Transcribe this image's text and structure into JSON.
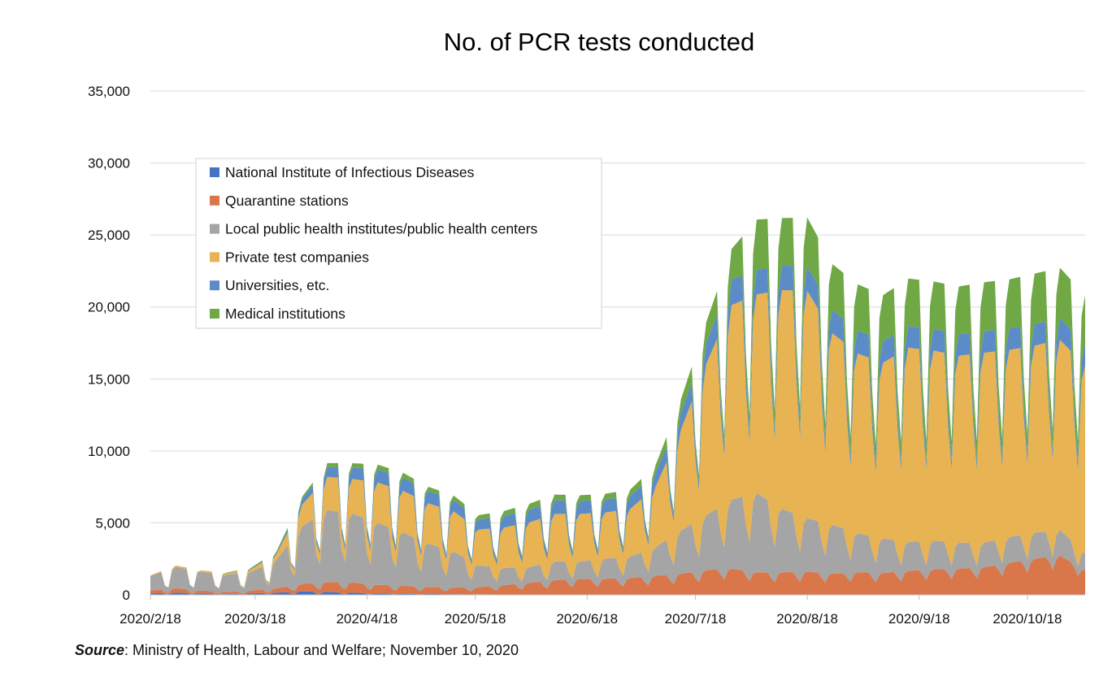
{
  "chart_data": {
    "type": "area",
    "stacked": true,
    "title": "No. of PCR tests conducted",
    "xlabel": "",
    "ylabel": "",
    "x_range": [
      "2020/2/18",
      "2020/11/3"
    ],
    "ylim": [
      0,
      35000
    ],
    "y_ticks": [
      0,
      5000,
      10000,
      15000,
      20000,
      25000,
      30000,
      35000
    ],
    "y_tick_labels": [
      "0",
      "5,000",
      "10,000",
      "15,000",
      "20,000",
      "25,000",
      "30,000",
      "35,000"
    ],
    "x_ticks": [
      "2020/2/18",
      "2020/3/18",
      "2020/4/18",
      "2020/5/18",
      "2020/6/18",
      "2020/7/18",
      "2020/8/18",
      "2020/9/18",
      "2020/10/18"
    ],
    "grid": true,
    "legend_position": "upper-left",
    "x_weekly": [
      "2020/2/18",
      "2020/2/25",
      "2020/3/3",
      "2020/3/10",
      "2020/3/17",
      "2020/3/24",
      "2020/3/31",
      "2020/4/7",
      "2020/4/14",
      "2020/4/21",
      "2020/4/28",
      "2020/5/5",
      "2020/5/12",
      "2020/5/19",
      "2020/5/26",
      "2020/6/2",
      "2020/6/9",
      "2020/6/16",
      "2020/6/23",
      "2020/6/30",
      "2020/7/7",
      "2020/7/14",
      "2020/7/21",
      "2020/7/28",
      "2020/8/4",
      "2020/8/11",
      "2020/8/18",
      "2020/8/25",
      "2020/9/1",
      "2020/9/8",
      "2020/9/15",
      "2020/9/22",
      "2020/9/29",
      "2020/10/6",
      "2020/10/13",
      "2020/10/20",
      "2020/10/27",
      "2020/11/3"
    ],
    "series": [
      {
        "name": "National Institute of Infectious Diseases",
        "color": "#4472c4",
        "weekday": [
          100,
          150,
          100,
          50,
          100,
          150,
          250,
          200,
          150,
          100,
          80,
          60,
          50,
          40,
          30,
          30,
          20,
          20,
          20,
          20,
          20,
          20,
          20,
          20,
          20,
          20,
          20,
          20,
          20,
          20,
          20,
          20,
          20,
          20,
          20,
          20,
          20,
          20
        ],
        "weekend": [
          30,
          50,
          30,
          20,
          30,
          50,
          80,
          60,
          50,
          40,
          30,
          20,
          20,
          15,
          10,
          10,
          10,
          10,
          10,
          10,
          10,
          10,
          10,
          10,
          10,
          10,
          10,
          10,
          10,
          10,
          10,
          10,
          10,
          10,
          10,
          10,
          10,
          10
        ]
      },
      {
        "name": "Quarantine stations",
        "color": "#d9774b",
        "weekday": [
          200,
          300,
          200,
          150,
          200,
          300,
          500,
          700,
          700,
          600,
          550,
          500,
          450,
          500,
          650,
          800,
          1000,
          1100,
          1100,
          1150,
          1300,
          1450,
          1700,
          1800,
          1550,
          1550,
          1600,
          1450,
          1550,
          1500,
          1650,
          1750,
          1800,
          1900,
          2200,
          2500,
          2700,
          1700
        ],
        "weekend": [
          100,
          100,
          100,
          80,
          100,
          150,
          300,
          400,
          400,
          350,
          300,
          280,
          250,
          300,
          380,
          450,
          550,
          650,
          650,
          700,
          800,
          900,
          1100,
          1300,
          1050,
          1000,
          1100,
          950,
          1100,
          1000,
          1150,
          1250,
          1300,
          1350,
          1600,
          1900,
          2100,
          1300
        ]
      },
      {
        "name": "Local public health institutes/public health centers",
        "color": "#a5a5a5",
        "weekday": [
          1000,
          1500,
          1300,
          1200,
          1300,
          2000,
          4000,
          5000,
          4800,
          4300,
          3700,
          3000,
          2500,
          1500,
          1200,
          1100,
          1300,
          1200,
          1400,
          1500,
          2000,
          3000,
          3800,
          4800,
          5500,
          4400,
          3700,
          3400,
          2700,
          2400,
          2000,
          2000,
          1800,
          1700,
          1800,
          1800,
          1800,
          1200
        ],
        "weekend": [
          300,
          500,
          400,
          400,
          400,
          700,
          1500,
          2300,
          2200,
          2000,
          1800,
          1500,
          1200,
          800,
          700,
          600,
          700,
          700,
          800,
          900,
          1200,
          1700,
          2200,
          2800,
          3300,
          2700,
          2300,
          2100,
          1700,
          1500,
          1200,
          1200,
          1100,
          1000,
          1100,
          1100,
          1100,
          700
        ]
      },
      {
        "name": "Private test companies",
        "color": "#e8b352",
        "weekday": [
          50,
          100,
          100,
          100,
          200,
          400,
          1500,
          2300,
          2400,
          2800,
          2900,
          2800,
          2800,
          2500,
          2800,
          3100,
          3300,
          3300,
          3200,
          3300,
          4200,
          7000,
          10500,
          13500,
          13800,
          15200,
          15800,
          13300,
          12500,
          12200,
          13500,
          13200,
          13000,
          13200,
          13000,
          13000,
          13200,
          13000
        ],
        "weekend": [
          20,
          30,
          30,
          30,
          60,
          150,
          500,
          900,
          1000,
          1200,
          1300,
          1300,
          1300,
          1200,
          1400,
          1600,
          1700,
          1700,
          1700,
          1800,
          2300,
          4000,
          6000,
          8000,
          8200,
          9000,
          9500,
          8000,
          7500,
          7300,
          8000,
          7800,
          7800,
          7900,
          7800,
          7800,
          7900,
          7800
        ]
      },
      {
        "name": "Universities, etc.",
        "color": "#5b8cc7",
        "weekday": [
          0,
          0,
          0,
          20,
          50,
          100,
          400,
          700,
          800,
          900,
          900,
          850,
          800,
          700,
          800,
          900,
          950,
          900,
          900,
          900,
          1000,
          1200,
          1500,
          1800,
          1700,
          1700,
          1700,
          1600,
          1600,
          1500,
          1500,
          1500,
          1500,
          1500,
          1500,
          1500,
          1500,
          1500
        ],
        "weekend": [
          0,
          0,
          0,
          10,
          20,
          40,
          150,
          300,
          350,
          400,
          400,
          380,
          350,
          300,
          350,
          400,
          420,
          400,
          400,
          400,
          450,
          550,
          700,
          850,
          800,
          800,
          800,
          750,
          750,
          700,
          700,
          700,
          700,
          700,
          700,
          700,
          700,
          700
        ]
      },
      {
        "name": "Medical institutions",
        "color": "#70a845",
        "weekday": [
          0,
          0,
          0,
          20,
          50,
          100,
          150,
          250,
          300,
          350,
          350,
          300,
          300,
          300,
          350,
          400,
          400,
          400,
          400,
          450,
          500,
          900,
          1400,
          2100,
          3500,
          3300,
          3400,
          3200,
          3200,
          3200,
          3300,
          3300,
          3300,
          3400,
          3400,
          3500,
          3500,
          3400
        ],
        "weekend": [
          0,
          0,
          0,
          10,
          20,
          40,
          60,
          100,
          120,
          150,
          150,
          120,
          120,
          120,
          150,
          170,
          170,
          170,
          170,
          200,
          220,
          400,
          650,
          1000,
          1700,
          1600,
          1650,
          1550,
          1550,
          1550,
          1600,
          1600,
          1600,
          1650,
          1650,
          1700,
          1700,
          1650
        ]
      }
    ]
  },
  "legend": {
    "items": [
      {
        "label": "National Institute of Infectious Diseases",
        "color": "#4472c4"
      },
      {
        "label": "Quarantine stations",
        "color": "#d9774b"
      },
      {
        "label": "Local public health institutes/public health centers",
        "color": "#a5a5a5"
      },
      {
        "label": "Private test companies",
        "color": "#e8b352"
      },
      {
        "label": "Universities, etc.",
        "color": "#5b8cc7"
      },
      {
        "label": "Medical institutions",
        "color": "#70a845"
      }
    ]
  },
  "source": {
    "label": "Source",
    "text": ": Ministry of Health, Labour and Welfare; November 10, 2020"
  }
}
